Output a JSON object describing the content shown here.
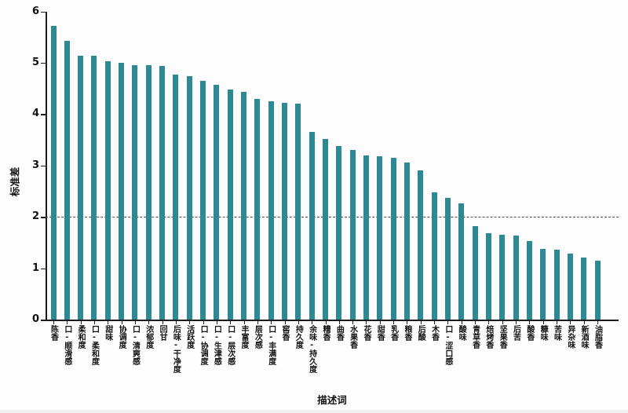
{
  "chart_data": {
    "type": "bar",
    "title": "",
    "xlabel": "描述词",
    "ylabel": "标准差",
    "ylim": [
      0,
      6
    ],
    "yticks": [
      0,
      1,
      2,
      3,
      4,
      5,
      6
    ],
    "reference_line_y": 2,
    "bar_color": "#2e8a92",
    "grid": false,
    "legend": "none",
    "categories": [
      "陈香",
      "口-顺滑感",
      "柔和度",
      "口-柔和度",
      "甜味",
      "协调度",
      "口-清爽感",
      "浓郁度",
      "回甘",
      "后味-干净度",
      "活跃度",
      "口-协调度",
      "口-生津感",
      "口-层次感",
      "丰富度",
      "层次感",
      "口-丰满度",
      "窖香",
      "持久度",
      "余味-持久度",
      "糟香",
      "曲香",
      "水果香",
      "花香",
      "甜香",
      "乳香",
      "粮香",
      "后酸",
      "木香",
      "口-涩口感",
      "酸味",
      "青草香",
      "焙烤香",
      "坚果香",
      "后苦",
      "酸香",
      "糠味",
      "苦味",
      "异杂味",
      "新酒味",
      "油脂香"
    ],
    "values": [
      5.72,
      5.43,
      5.14,
      5.13,
      5.03,
      5.0,
      4.96,
      4.95,
      4.93,
      4.77,
      4.74,
      4.65,
      4.57,
      4.48,
      4.44,
      4.3,
      4.25,
      4.22,
      4.2,
      3.65,
      3.52,
      3.38,
      3.3,
      3.19,
      3.18,
      3.15,
      3.06,
      2.9,
      2.48,
      2.37,
      2.26,
      1.82,
      1.68,
      1.65,
      1.64,
      1.53,
      1.38,
      1.36,
      1.28,
      1.21,
      1.15
    ]
  }
}
